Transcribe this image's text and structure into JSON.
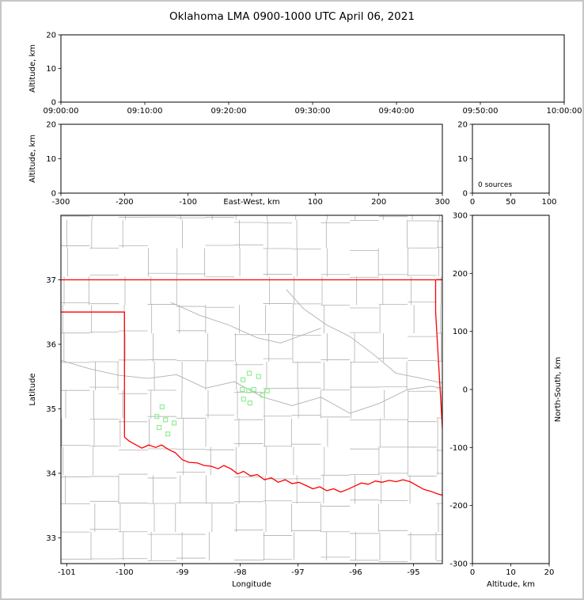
{
  "title": "Oklahoma LMA 0900-1000 UTC April 06, 2021",
  "colors": {
    "state_border": "#ff0000",
    "county_lines": "#b0b0b0",
    "river_lines": "#b0b0b0",
    "station_marker": "#90ee90",
    "frame": "#000000",
    "background": "#ffffff",
    "outer_border": "#c6c6c6"
  },
  "chart_data": {
    "type": "scatter",
    "title": "Oklahoma LMA 0900-1000 UTC April 06, 2021",
    "sources_annotation": "0 sources",
    "panels": [
      {
        "id": "time-height",
        "rect": [
          75,
          42,
          636,
          85
        ],
        "xlim": [
          0,
          3600
        ],
        "ylim": [
          0,
          20
        ],
        "xticks": {
          "values": [
            0,
            600,
            1200,
            1800,
            2400,
            3000,
            3600
          ],
          "labels": [
            "09:00:00",
            "09:10:00",
            "09:20:00",
            "09:30:00",
            "09:40:00",
            "09:50:00",
            "10:00:00"
          ]
        },
        "yticks": {
          "values": [
            0,
            10,
            20
          ],
          "labels": [
            "0",
            "10",
            "20"
          ]
        },
        "xlabel": "",
        "ylabel": "Altitude, km",
        "ylabel_side": "left",
        "xlabel_inline": false
      },
      {
        "id": "ew-height",
        "rect": [
          75,
          155,
          482,
          87
        ],
        "xlim": [
          -300,
          300
        ],
        "ylim": [
          0,
          20
        ],
        "xticks": {
          "values": [
            -300,
            -200,
            -100,
            0,
            100,
            200,
            300
          ],
          "labels": [
            "-300",
            "-200",
            "-100",
            "",
            "100",
            "200",
            "300"
          ]
        },
        "yticks": {
          "values": [
            0,
            10,
            20
          ],
          "labels": [
            "0",
            "10",
            "20"
          ]
        },
        "xlabel": "East-West, km",
        "ylabel": "Altitude, km",
        "ylabel_side": "left",
        "xlabel_inline": true
      },
      {
        "id": "source-histogram",
        "rect": [
          595,
          155,
          97,
          87
        ],
        "xlim": [
          0,
          100
        ],
        "ylim": [
          0,
          20
        ],
        "xticks": {
          "values": [
            0,
            50,
            100
          ],
          "labels": [
            "0",
            "50",
            "100"
          ]
        },
        "yticks": {
          "values": [
            0,
            10,
            20
          ],
          "labels": [
            "0",
            "10",
            "20"
          ]
        },
        "xlabel": "",
        "ylabel": "",
        "annotation": "0 sources",
        "xlabel_inline": false
      },
      {
        "id": "plan-view",
        "rect": [
          75,
          270,
          482,
          440
        ],
        "xlim": [
          -101.1,
          -94.5
        ],
        "ylim": [
          32.6,
          38.0
        ],
        "xticks": {
          "values": [
            -101,
            -100,
            -99,
            -98,
            -97,
            -96,
            -95
          ],
          "labels": [
            "-101",
            "-100",
            "-99",
            "-98",
            "-97",
            "-96",
            "-95"
          ]
        },
        "yticks": {
          "values": [
            33,
            34,
            35,
            36,
            37
          ],
          "labels": [
            "33",
            "34",
            "35",
            "36",
            "37"
          ]
        },
        "xlabel": "Longitude",
        "ylabel": "Latitude",
        "ylabel_side": "left",
        "xlabel_inline": false
      },
      {
        "id": "ns-height",
        "rect": [
          595,
          270,
          97,
          440
        ],
        "xlim": [
          0,
          20
        ],
        "ylim": [
          -300,
          300
        ],
        "xticks": {
          "values": [
            0,
            10,
            20
          ],
          "labels": [
            "0",
            "10",
            "20"
          ]
        },
        "yticks": {
          "values": [
            300,
            200,
            100,
            0,
            -100,
            -200,
            -300
          ],
          "labels": [
            "300",
            "200",
            "100",
            "0",
            "-100",
            "-200",
            "-300"
          ]
        },
        "xlabel": "Altitude, km",
        "ylabel": "North-South, km",
        "ylabel_side": "right",
        "xlabel_inline": false
      }
    ],
    "map": {
      "stations": [
        [
          -97.95,
          35.45
        ],
        [
          -97.84,
          35.55
        ],
        [
          -97.68,
          35.5
        ],
        [
          -97.96,
          35.3
        ],
        [
          -97.85,
          35.28
        ],
        [
          -97.76,
          35.3
        ],
        [
          -97.94,
          35.15
        ],
        [
          -97.83,
          35.09
        ],
        [
          -97.61,
          35.21
        ],
        [
          -97.53,
          35.28
        ],
        [
          -99.35,
          35.03
        ],
        [
          -99.44,
          34.88
        ],
        [
          -99.29,
          34.83
        ],
        [
          -99.4,
          34.71
        ],
        [
          -99.25,
          34.61
        ],
        [
          -99.14,
          34.78
        ]
      ],
      "state_border_segments": [
        [
          [
            -101.1,
            37.0
          ],
          [
            -94.5,
            37.0
          ]
        ],
        [
          [
            -101.1,
            36.5
          ],
          [
            -100.0,
            36.5
          ],
          [
            -100.0,
            34.56
          ]
        ],
        [
          [
            -94.617,
            37.0
          ],
          [
            -94.617,
            36.5
          ],
          [
            -94.43,
            33.63
          ]
        ],
        [
          [
            -100.0,
            34.56
          ],
          [
            -99.92,
            34.5
          ],
          [
            -99.82,
            34.45
          ],
          [
            -99.7,
            34.39
          ],
          [
            -99.58,
            34.44
          ],
          [
            -99.46,
            34.4
          ],
          [
            -99.36,
            34.44
          ],
          [
            -99.24,
            34.37
          ],
          [
            -99.12,
            34.32
          ],
          [
            -99.0,
            34.21
          ],
          [
            -98.88,
            34.17
          ],
          [
            -98.74,
            34.16
          ],
          [
            -98.62,
            34.12
          ],
          [
            -98.5,
            34.11
          ],
          [
            -98.38,
            34.07
          ],
          [
            -98.28,
            34.12
          ],
          [
            -98.16,
            34.07
          ],
          [
            -98.04,
            33.99
          ],
          [
            -97.94,
            34.03
          ],
          [
            -97.82,
            33.96
          ],
          [
            -97.7,
            33.98
          ],
          [
            -97.58,
            33.9
          ],
          [
            -97.46,
            33.93
          ],
          [
            -97.34,
            33.86
          ],
          [
            -97.22,
            33.9
          ],
          [
            -97.1,
            33.84
          ],
          [
            -96.98,
            33.86
          ],
          [
            -96.86,
            33.81
          ],
          [
            -96.74,
            33.76
          ],
          [
            -96.62,
            33.79
          ],
          [
            -96.5,
            33.73
          ],
          [
            -96.38,
            33.76
          ],
          [
            -96.26,
            33.71
          ],
          [
            -96.14,
            33.75
          ],
          [
            -96.02,
            33.8
          ],
          [
            -95.9,
            33.85
          ],
          [
            -95.78,
            33.83
          ],
          [
            -95.66,
            33.88
          ],
          [
            -95.54,
            33.86
          ],
          [
            -95.42,
            33.89
          ],
          [
            -95.3,
            33.87
          ],
          [
            -95.18,
            33.9
          ],
          [
            -95.06,
            33.87
          ],
          [
            -94.94,
            33.81
          ],
          [
            -94.82,
            33.75
          ],
          [
            -94.7,
            33.72
          ],
          [
            -94.58,
            33.68
          ],
          [
            -94.5,
            33.66
          ]
        ]
      ],
      "rivers": [
        [
          [
            -101.1,
            35.75
          ],
          [
            -100.6,
            35.62
          ],
          [
            -100.1,
            35.52
          ],
          [
            -99.6,
            35.47
          ],
          [
            -99.1,
            35.53
          ],
          [
            -98.6,
            35.32
          ],
          [
            -98.1,
            35.42
          ],
          [
            -97.6,
            35.18
          ],
          [
            -97.1,
            35.05
          ],
          [
            -96.6,
            35.18
          ],
          [
            -96.1,
            34.93
          ],
          [
            -95.6,
            35.08
          ],
          [
            -95.1,
            35.3
          ],
          [
            -94.7,
            35.35
          ],
          [
            -94.5,
            35.32
          ]
        ],
        [
          [
            -97.2,
            36.85
          ],
          [
            -96.9,
            36.55
          ],
          [
            -96.5,
            36.3
          ],
          [
            -96.1,
            36.12
          ],
          [
            -95.7,
            35.85
          ],
          [
            -95.3,
            35.55
          ],
          [
            -94.9,
            35.48
          ],
          [
            -94.5,
            35.4
          ]
        ],
        [
          [
            -99.2,
            36.65
          ],
          [
            -98.7,
            36.45
          ],
          [
            -98.2,
            36.3
          ],
          [
            -97.7,
            36.1
          ],
          [
            -97.3,
            36.02
          ],
          [
            -96.9,
            36.15
          ],
          [
            -96.6,
            36.25
          ]
        ]
      ],
      "county_grid": {
        "lon_start": -101.05,
        "lon_end": -94.55,
        "lon_step": 0.5,
        "lat_start": 32.65,
        "lat_end": 38.0,
        "lat_step": 0.44,
        "jitter": 0.07,
        "skip_probability": 0.15,
        "seed": 7
      }
    }
  }
}
